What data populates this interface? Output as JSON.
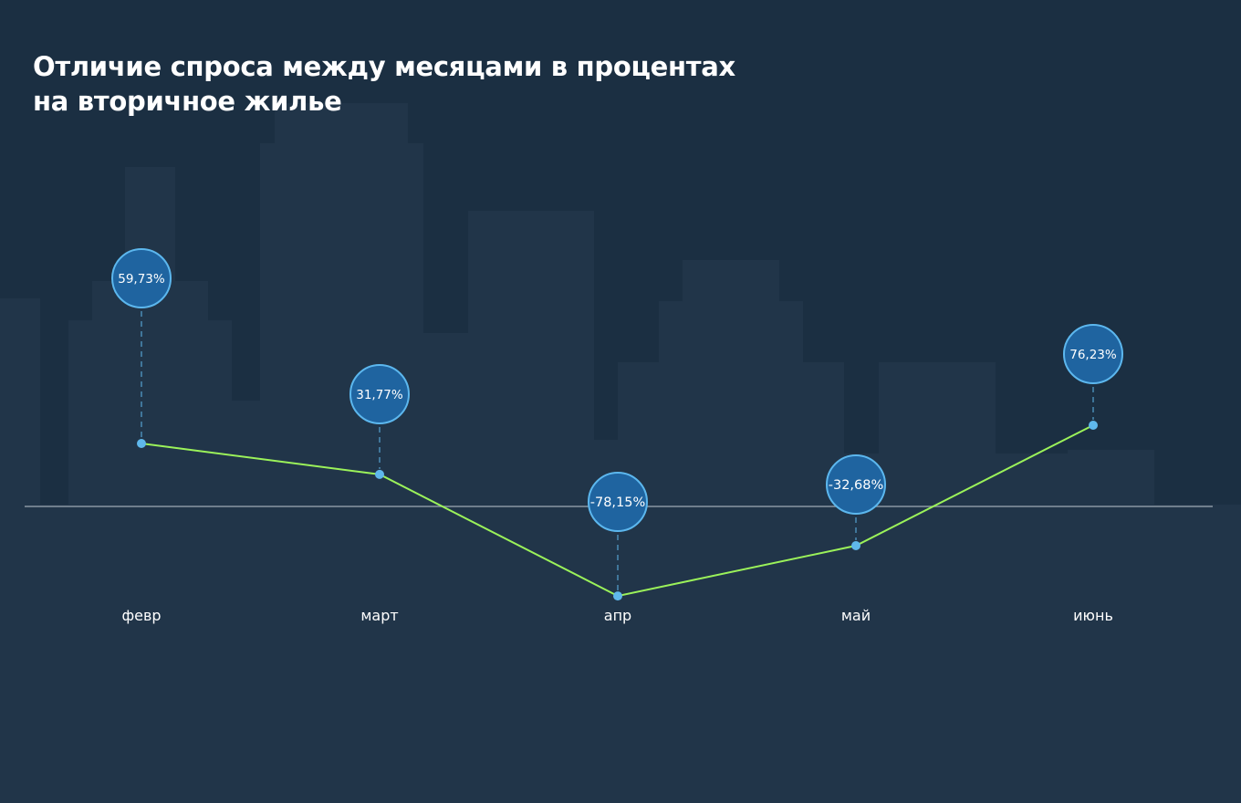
{
  "chart_data": {
    "type": "line",
    "title": "Отличие спроса между месяцами в процентах на вторичное жилье",
    "title_lines": [
      "Отличие спроса между месяцами в процентах",
      "на вторичное жилье"
    ],
    "categories": [
      "февр",
      "март",
      "апр",
      "май",
      "июнь"
    ],
    "value_labels": [
      "59,73%",
      "31,77%",
      "-78,15%",
      "-32,68%",
      "76,23%"
    ],
    "values": [
      59.73,
      31.77,
      -78.15,
      -32.68,
      76.23
    ],
    "xlabel": "",
    "ylabel": "",
    "grid": false,
    "zero_line": true
  },
  "colors": {
    "background": "#1b2f42",
    "buildings": "#213549",
    "line": "#9bf25a",
    "marker": "#5fb8ec",
    "bubble_fill": "#1f64a0",
    "bubble_stroke": "#5cb7ee",
    "zero_line": "#8a96a2",
    "text": "#ffffff"
  }
}
